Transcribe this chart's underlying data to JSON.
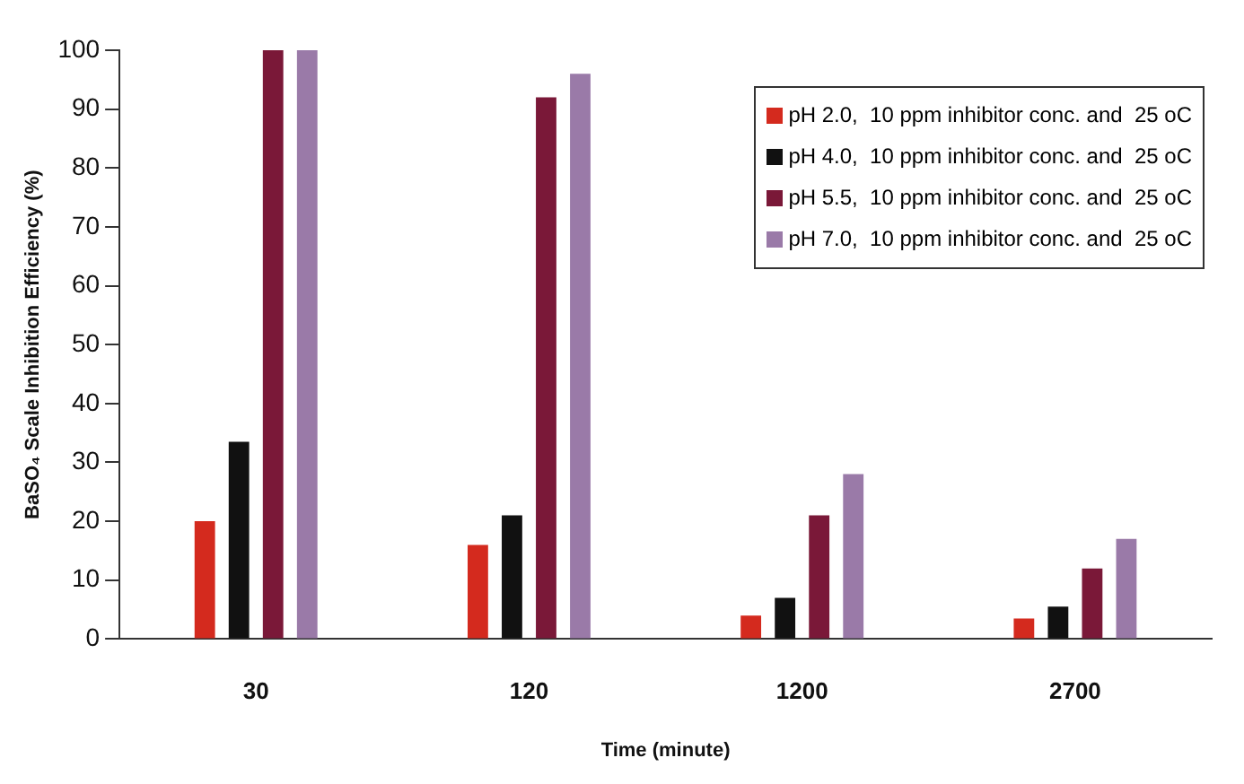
{
  "chart_data": {
    "type": "bar",
    "xlabel": "Time (minute)",
    "ylabel": "BaSO₄ Scale Inhibition Efficiency (%)",
    "categories": [
      "30",
      "120",
      "1200",
      "2700"
    ],
    "series": [
      {
        "name": "pH 2.0,  10 ppm inhibitor conc. and  25 oC",
        "color": "#d42a1e",
        "values": [
          20,
          16,
          4,
          3.5
        ]
      },
      {
        "name": "pH 4.0,  10 ppm inhibitor conc. and  25 oC",
        "color": "#111111",
        "values": [
          33.5,
          21,
          7,
          5.5
        ]
      },
      {
        "name": "pH 5.5,  10 ppm inhibitor conc. and  25 oC",
        "color": "#7a1838",
        "values": [
          100,
          92,
          21,
          12
        ]
      },
      {
        "name": "pH 7.0,  10 ppm inhibitor conc. and  25 oC",
        "color": "#9a7aa8",
        "values": [
          100,
          96,
          28,
          17
        ]
      }
    ],
    "ylim": [
      0,
      100
    ],
    "yticks": [
      0,
      10,
      20,
      30,
      40,
      50,
      60,
      70,
      80,
      90,
      100
    ],
    "grid": false,
    "legend": "top right"
  }
}
